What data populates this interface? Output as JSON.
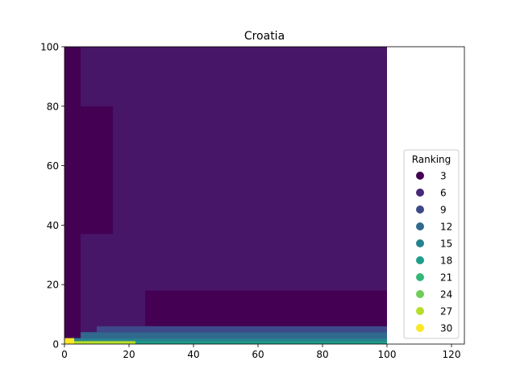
{
  "chart_data": {
    "type": "scatter",
    "title": "Croatia",
    "xlabel": "",
    "ylabel": "",
    "xlim": [
      0,
      124
    ],
    "ylim": [
      0,
      100
    ],
    "x_ticks": [
      0,
      20,
      40,
      60,
      80,
      100,
      120
    ],
    "y_ticks": [
      0,
      20,
      40,
      60,
      80,
      100
    ],
    "grid": false,
    "colormap": "viridis",
    "point_grid": {
      "x_range": [
        0,
        100
      ],
      "y_range": [
        0,
        100
      ],
      "step": 1
    },
    "legend": {
      "title": "Ranking",
      "placement": "lower-right",
      "entries": [
        {
          "label": "3",
          "color": "#440154"
        },
        {
          "label": "6",
          "color": "#482878"
        },
        {
          "label": "9",
          "color": "#3e4989"
        },
        {
          "label": "12",
          "color": "#31688e"
        },
        {
          "label": "15",
          "color": "#26828e"
        },
        {
          "label": "18",
          "color": "#1f9e89"
        },
        {
          "label": "21",
          "color": "#35b779"
        },
        {
          "label": "24",
          "color": "#6ece58"
        },
        {
          "label": "27",
          "color": "#b5de2b"
        },
        {
          "label": "30",
          "color": "#fde725"
        }
      ]
    },
    "regions": [
      {
        "description": "background ranking",
        "ranking": 5,
        "color": "#481668",
        "x": [
          0,
          100
        ],
        "y": [
          0,
          100
        ]
      },
      {
        "description": "left vertical band",
        "ranking": 2,
        "color": "#440154",
        "x": [
          0,
          5
        ],
        "y": [
          0,
          100
        ]
      },
      {
        "description": "upper-left wedge",
        "ranking": 2,
        "color": "#440154",
        "x": [
          0,
          15
        ],
        "y": [
          37,
          80
        ]
      },
      {
        "description": "bottom-right block",
        "ranking": 2,
        "color": "#440154",
        "x": [
          25,
          100
        ],
        "y": [
          6,
          18
        ]
      },
      {
        "description": "low band",
        "ranking": 8,
        "color": "#3e4989",
        "x": [
          10,
          100
        ],
        "y": [
          4,
          6
        ]
      },
      {
        "description": "lower band",
        "ranking": 11,
        "color": "#31688e",
        "x": [
          5,
          100
        ],
        "y": [
          2,
          4
        ]
      },
      {
        "description": "bottom band",
        "ranking": 16,
        "color": "#26828e",
        "x": [
          2,
          100
        ],
        "y": [
          1,
          2
        ]
      },
      {
        "description": "bottom band",
        "ranking": 19,
        "color": "#1f9e89",
        "x": [
          2,
          100
        ],
        "y": [
          0,
          1
        ]
      },
      {
        "description": "near-origin strip",
        "ranking": 28,
        "color": "#b5de2b",
        "x": [
          0,
          22
        ],
        "y": [
          0,
          1
        ]
      },
      {
        "description": "origin cells",
        "ranking": 30,
        "color": "#fde725",
        "x": [
          0,
          3
        ],
        "y": [
          0,
          2
        ]
      }
    ]
  }
}
